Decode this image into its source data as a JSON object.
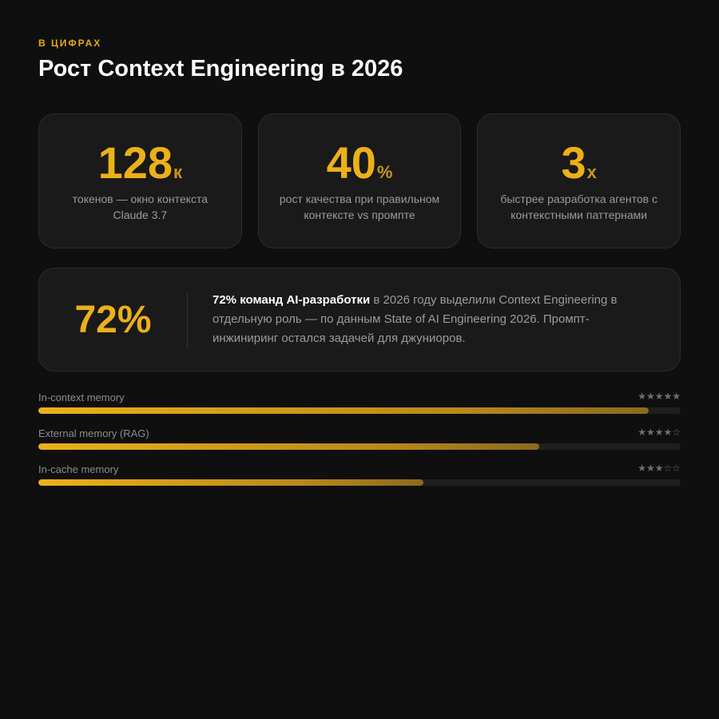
{
  "header": {
    "eyebrow": "В ЦИФРАХ",
    "title": "Рост Context Engineering в 2026"
  },
  "stats": [
    {
      "value": "128",
      "unit": "к",
      "description": "токенов — окно контекста Claude 3.7"
    },
    {
      "value": "40",
      "unit": "%",
      "description": "рост качества при правильном контексте vs промпте"
    },
    {
      "value": "3",
      "unit": "x",
      "description": "быстрее разработка агентов с контекстными паттернами"
    }
  ],
  "highlight": {
    "value": "72%",
    "text_strong": "72% команд AI-разработки",
    "text_rest": " в 2026 году выделили Context Engineering в отдельную роль — по данным State of AI Engineering 2026. Промпт-инжиниринг остался задачей для джуниоров."
  },
  "memory_bars": [
    {
      "label": "In-context memory",
      "stars": "★★★★★",
      "rating": 5,
      "progress": 0.95
    },
    {
      "label": "External memory (RAG)",
      "stars": "★★★★☆",
      "rating": 4,
      "progress": 0.78
    },
    {
      "label": "In-cache memory",
      "stars": "★★★☆☆",
      "rating": 3,
      "progress": 0.6
    }
  ],
  "colors": {
    "background": "#0f0f0f",
    "accent": "#ecb019",
    "card": "#1a1a1a"
  }
}
